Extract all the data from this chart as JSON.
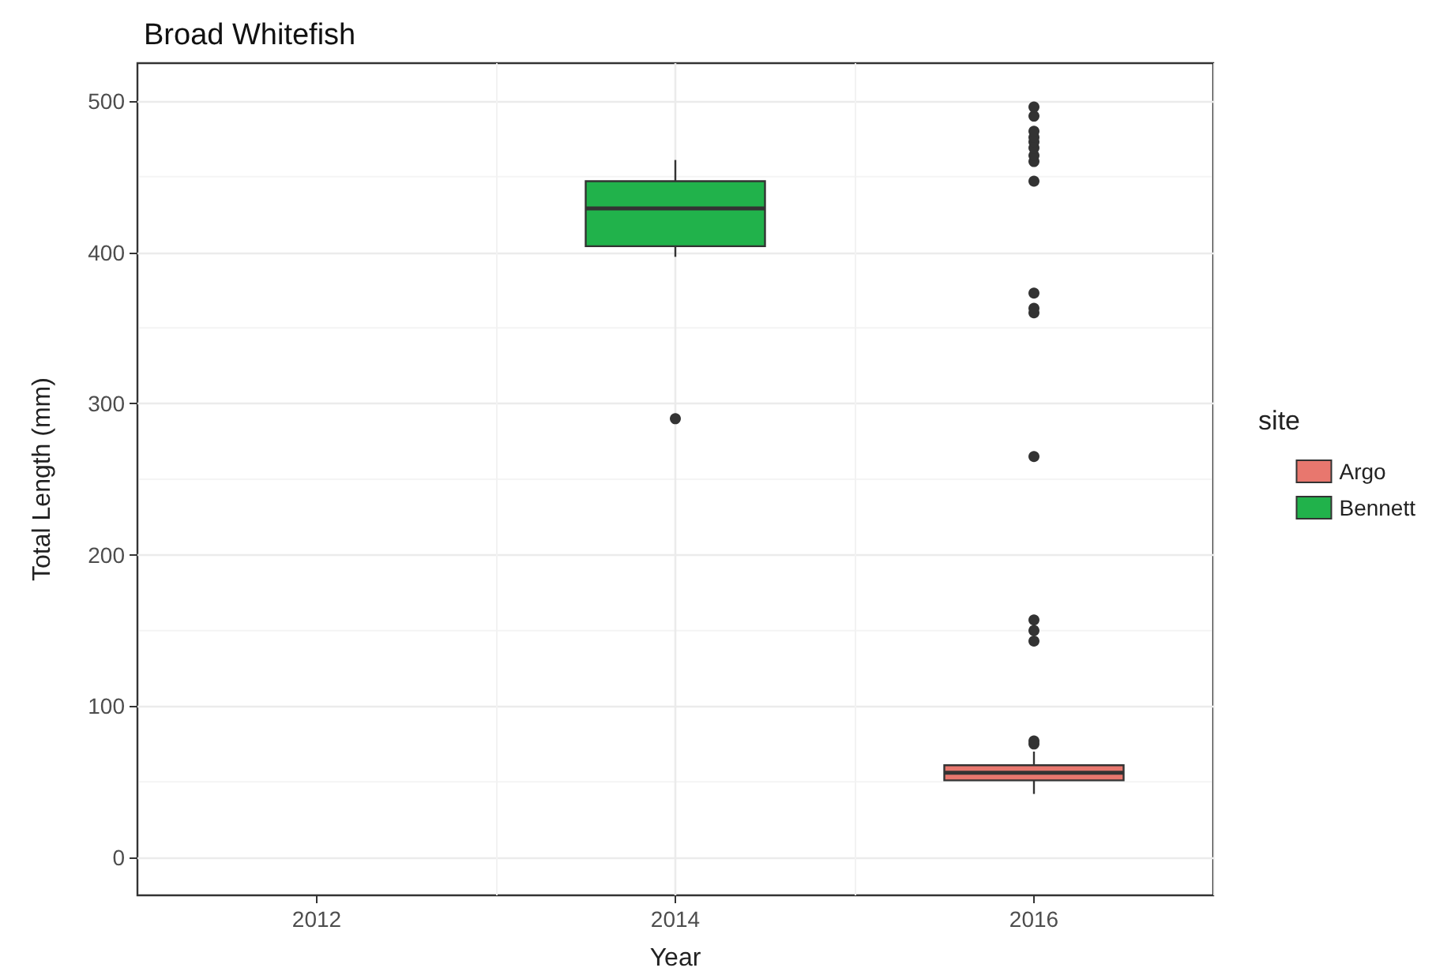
{
  "chart_data": {
    "type": "box",
    "title": "Broad Whitefish",
    "xlabel": "Year",
    "ylabel": "Total Length (mm)",
    "legend_title": "site",
    "categories": [
      "2012",
      "2014",
      "2016"
    ],
    "series": [
      {
        "name": "Argo",
        "color": "#e8776e",
        "boxes": [
          null,
          null,
          {
            "low": 42,
            "q1": 51,
            "median": 56,
            "q3": 61,
            "high": 70,
            "outliers": [
              75,
              77,
              143,
              150,
              157,
              265,
              360,
              363,
              373,
              447,
              460,
              464,
              469,
              473,
              476,
              480,
              490,
              496
            ]
          }
        ]
      },
      {
        "name": "Bennett",
        "color": "#21b24b",
        "boxes": [
          null,
          {
            "low": 397,
            "q1": 404,
            "median": 429,
            "q3": 447,
            "high": 461,
            "outliers": [
              290
            ]
          },
          null
        ]
      }
    ],
    "ylim": [
      -25,
      525
    ],
    "yticks": [
      0,
      100,
      200,
      300,
      400,
      500
    ],
    "grid": true,
    "legend": "right"
  }
}
